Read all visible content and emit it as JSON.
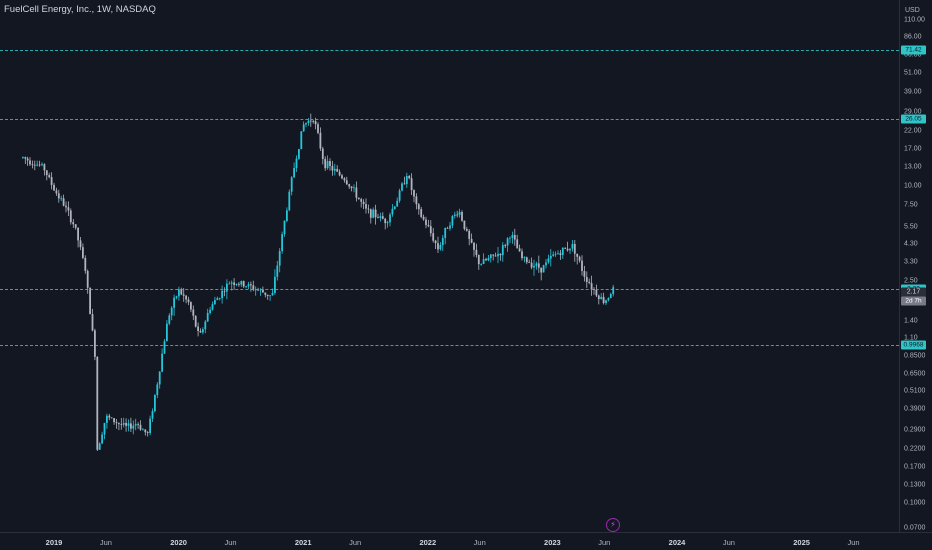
{
  "header": {
    "title": "FuelCell Energy, Inc., 1W, NASDAQ",
    "currency": "USD"
  },
  "price_labels": {
    "level_high": "71.42",
    "level_mid": "26.05",
    "level_cur": "2.22",
    "last_price": "2.17",
    "countdown": "2d 7h",
    "level_low": "0.9968"
  },
  "colors": {
    "background": "#131722",
    "candle_up": "#26c6da",
    "candle_down": "#b2b5be",
    "level_line": "#2ec4c8",
    "axis_text": "#b2b5be"
  },
  "events_icon": "lightning-icon",
  "chart_data": {
    "type": "candlestick",
    "title": "FuelCell Energy, Inc., 1W, NASDAQ",
    "y_scale": "log",
    "ylim": [
      0.06,
      145
    ],
    "y_ticks": [
      "110.00",
      "86.00",
      "66.00",
      "51.00",
      "39.00",
      "29.00",
      "22.00",
      "17.00",
      "13.00",
      "10.00",
      "7.50",
      "5.50",
      "4.30",
      "3.30",
      "2.50",
      "1.90",
      "1.40",
      "1.10",
      "0.8500",
      "0.6500",
      "0.5100",
      "0.3900",
      "0.2900",
      "0.2200",
      "0.1700",
      "0.1300",
      "0.1000",
      "0.0700"
    ],
    "x_ticks": [
      {
        "label": "2019",
        "year": true
      },
      {
        "label": "Jun",
        "year": false
      },
      {
        "label": "2020",
        "year": true
      },
      {
        "label": "Jun",
        "year": false
      },
      {
        "label": "2021",
        "year": true
      },
      {
        "label": "Jun",
        "year": false
      },
      {
        "label": "2022",
        "year": true
      },
      {
        "label": "Jun",
        "year": false
      },
      {
        "label": "2023",
        "year": true
      },
      {
        "label": "Jun",
        "year": false
      },
      {
        "label": "2024",
        "year": true
      },
      {
        "label": "Jun",
        "year": false
      },
      {
        "label": "2025",
        "year": true
      },
      {
        "label": "Jun",
        "year": false
      }
    ],
    "horizontal_levels": [
      71.42,
      26.05,
      2.22,
      0.9968
    ],
    "last_price": 2.17,
    "price_path": [
      [
        "2018-10",
        15
      ],
      [
        "2018-12",
        13
      ],
      [
        "2019-01",
        9.5
      ],
      [
        "2019-02",
        7.5
      ],
      [
        "2019-03",
        5.5
      ],
      [
        "2019-04",
        3.0
      ],
      [
        "2019-05",
        0.8
      ],
      [
        "2019-05",
        0.2
      ],
      [
        "2019-06",
        0.35
      ],
      [
        "2019-08",
        0.3
      ],
      [
        "2019-09",
        0.32
      ],
      [
        "2019-10",
        0.27
      ],
      [
        "2019-11",
        0.6
      ],
      [
        "2019-12",
        1.5
      ],
      [
        "2020-01",
        2.2
      ],
      [
        "2020-02",
        1.8
      ],
      [
        "2020-03",
        1.1
      ],
      [
        "2020-04",
        1.7
      ],
      [
        "2020-06",
        2.5
      ],
      [
        "2020-08",
        2.3
      ],
      [
        "2020-10",
        2.0
      ],
      [
        "2020-11",
        5.0
      ],
      [
        "2020-12",
        12
      ],
      [
        "2021-01",
        24
      ],
      [
        "2021-02",
        27
      ],
      [
        "2021-03",
        14
      ],
      [
        "2021-05",
        11
      ],
      [
        "2021-06",
        9
      ],
      [
        "2021-07",
        7
      ],
      [
        "2021-09",
        6
      ],
      [
        "2021-10",
        8
      ],
      [
        "2021-11",
        12
      ],
      [
        "2021-12",
        7
      ],
      [
        "2022-01",
        5.5
      ],
      [
        "2022-02",
        4.0
      ],
      [
        "2022-03",
        5.8
      ],
      [
        "2022-04",
        7.0
      ],
      [
        "2022-05",
        4.5
      ],
      [
        "2022-06",
        3.2
      ],
      [
        "2022-08",
        3.8
      ],
      [
        "2022-09",
        5.0
      ],
      [
        "2022-10",
        3.5
      ],
      [
        "2022-12",
        3.0
      ],
      [
        "2023-01",
        3.6
      ],
      [
        "2023-02",
        3.9
      ],
      [
        "2023-03",
        4.2
      ],
      [
        "2023-04",
        2.8
      ],
      [
        "2023-05",
        2.2
      ],
      [
        "2023-06",
        1.85
      ],
      [
        "2023-07",
        2.3
      ],
      [
        "2023-07",
        2.17
      ]
    ]
  }
}
